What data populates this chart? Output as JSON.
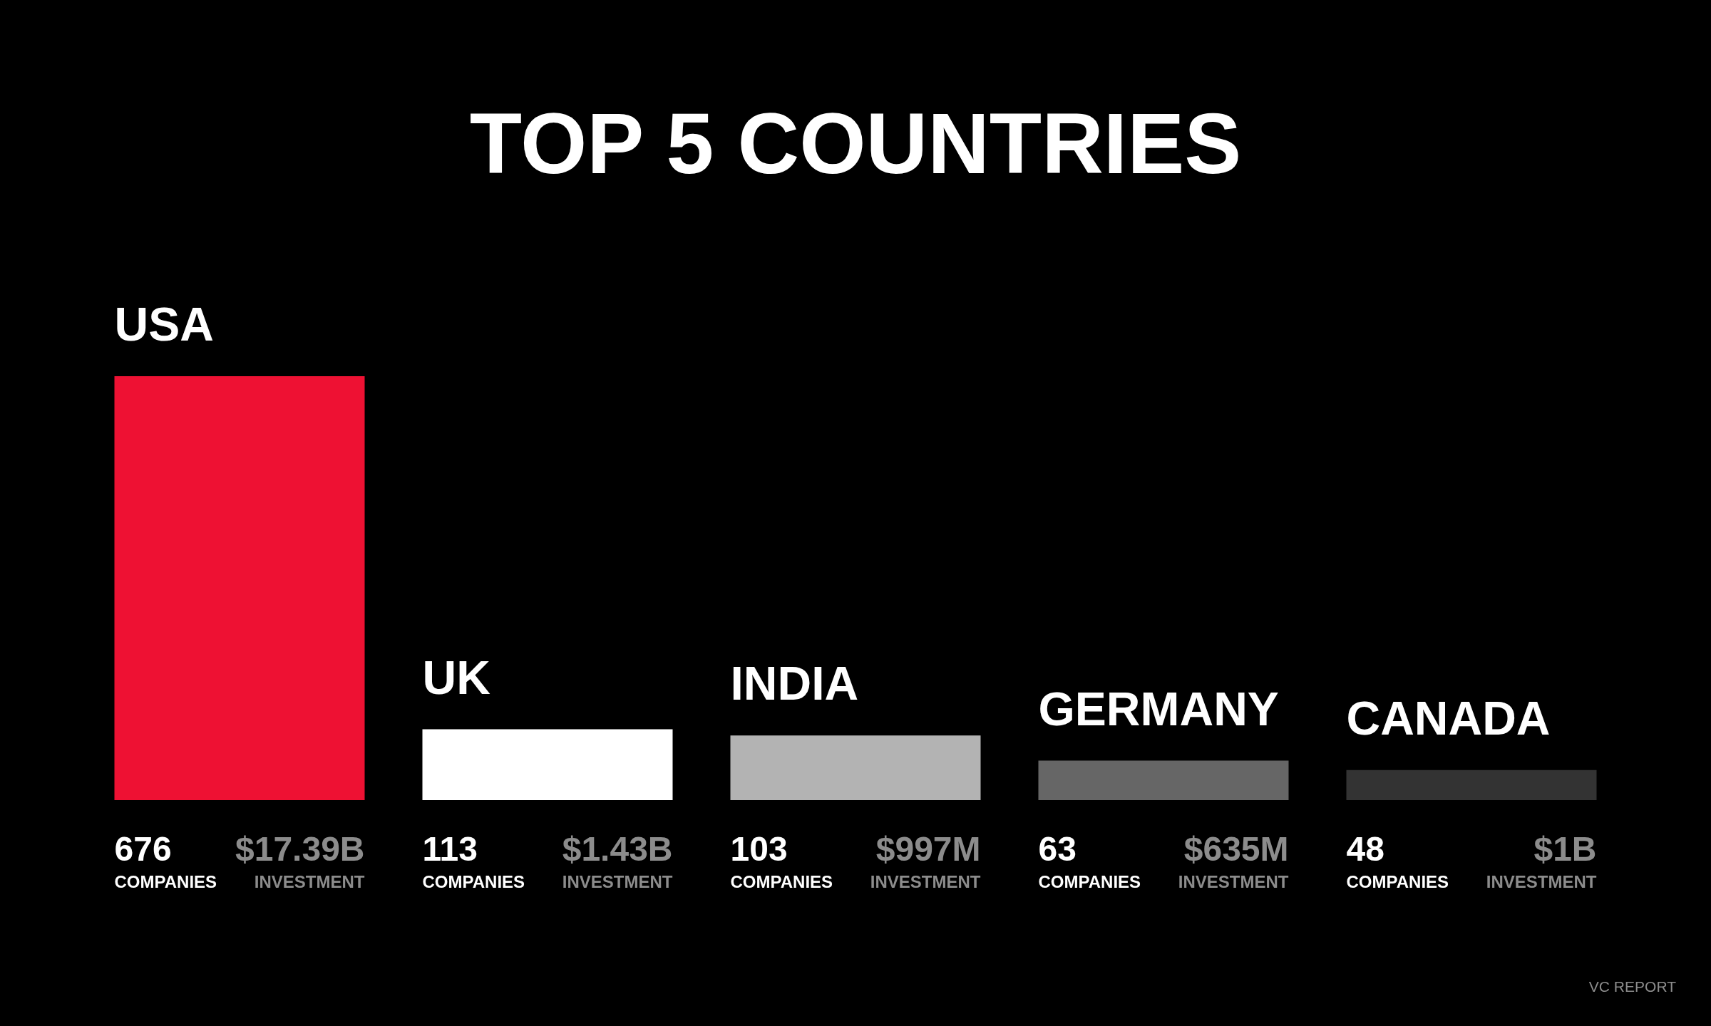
{
  "chart_data": {
    "type": "bar",
    "title": "TOP 5 COUNTRIES",
    "categories": [
      "USA",
      "UK",
      "INDIA",
      "GERMANY",
      "CANADA"
    ],
    "series": [
      {
        "name": "COMPANIES",
        "values": [
          676,
          113,
          103,
          63,
          48
        ],
        "colors": [
          "#ee1133",
          "#ffffff",
          "#b3b3b3",
          "#666666",
          "#333333"
        ]
      }
    ],
    "data_labels": true,
    "tick_labels": "x",
    "annotations": [
      "$17.39B",
      "INVESTMENT",
      "$1.43B",
      "INVESTMENT",
      "$997M",
      "INVESTMENT",
      "$635M",
      "INVESTMENT",
      "$1B",
      "INVESTMENT",
      "VC REPORT"
    ]
  }
}
